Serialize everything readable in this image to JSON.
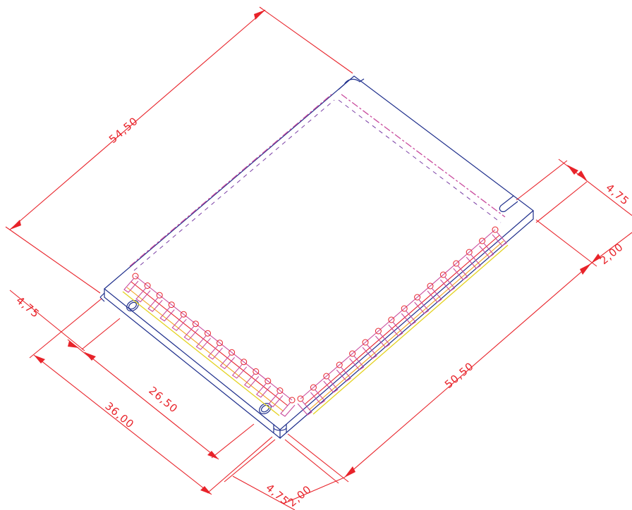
{
  "drawing": {
    "dimensions": {
      "top_length": "54,50",
      "right_length": "50,50",
      "right_notch_offset": "4,75",
      "right_notch_width": "2,00",
      "left_offset": "4,75",
      "left_inner": "26,50",
      "left_total": "36,00",
      "bottom_offset": "4,75",
      "bottom_width": "2,00"
    },
    "colors": {
      "dimension": "#e8232a",
      "outline": "#1f2f8c",
      "pins_a": "#c94b9d",
      "pins_c": "#f2a21b",
      "pins_d": "#e4d21f"
    }
  }
}
